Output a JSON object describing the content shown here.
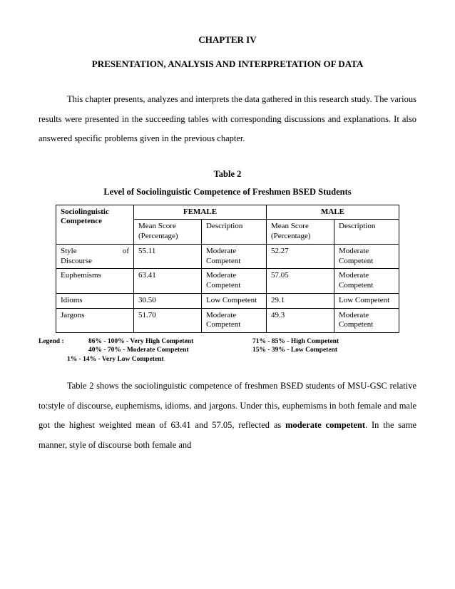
{
  "chapter_num": "CHAPTER IV",
  "chapter_title": "PRESENTATION, ANALYSIS AND INTERPRETATION OF DATA",
  "intro_para": "This chapter presents, analyzes and interprets the data gathered in this research study. The various results were presented in the succeeding tables with corresponding discussions and explanations. It also answered specific problems given in the previous chapter.",
  "table_label": "Table 2",
  "table_title": "Level of Sociolinguistic Competence of Freshmen BSED Students",
  "table": {
    "header_cat": "Sociolinguistic Competence",
    "header_female": "FEMALE",
    "header_male": "MALE",
    "sub_mean": "Mean Score (Percentage)",
    "sub_desc": "Description",
    "rows": [
      {
        "label_l": "Style",
        "label_r": "of",
        "label2": "Discourse",
        "f_mean": "55.11",
        "f_desc": "Moderate Competent",
        "m_mean": "52.27",
        "m_desc": "Moderate Competent"
      },
      {
        "label_l": "Euphemisms",
        "label_r": "",
        "label2": "",
        "f_mean": "63.41",
        "f_desc": "Moderate Competent",
        "m_mean": "57.05",
        "m_desc": "Moderate Competent"
      },
      {
        "label_l": "Idioms",
        "label_r": "",
        "label2": "",
        "f_mean": "30.50",
        "f_desc": "Low Competent",
        "m_mean": "29.1",
        "m_desc": "Low Competent"
      },
      {
        "label_l": "Jargons",
        "label_r": "",
        "label2": "",
        "f_mean": "51.70",
        "f_desc": "Moderate Competent",
        "m_mean": "49.3",
        "m_desc": "Moderate Competent"
      }
    ]
  },
  "legend": {
    "label": "Legend :",
    "r1c1": "86% - 100% - Very High Competent",
    "r1c2": "71% - 85% - High Competent",
    "r2c1": "40% - 70% - Moderate Competent",
    "r2c2": "15% - 39% - Low Competent",
    "r3": "1% - 14% - Very Low Competent"
  },
  "para2_a": "Table 2 shows the sociolinguistic competence of freshmen BSED students of MSU-GSC relative to:style of discourse, euphemisms, idioms, and jargons. Under this, euphemisms in both female and male got the highest weighted mean of 63.41 and 57.05, reflected as ",
  "para2_bold": "moderate competent",
  "para2_b": ". In the same manner, style of discourse both female and"
}
